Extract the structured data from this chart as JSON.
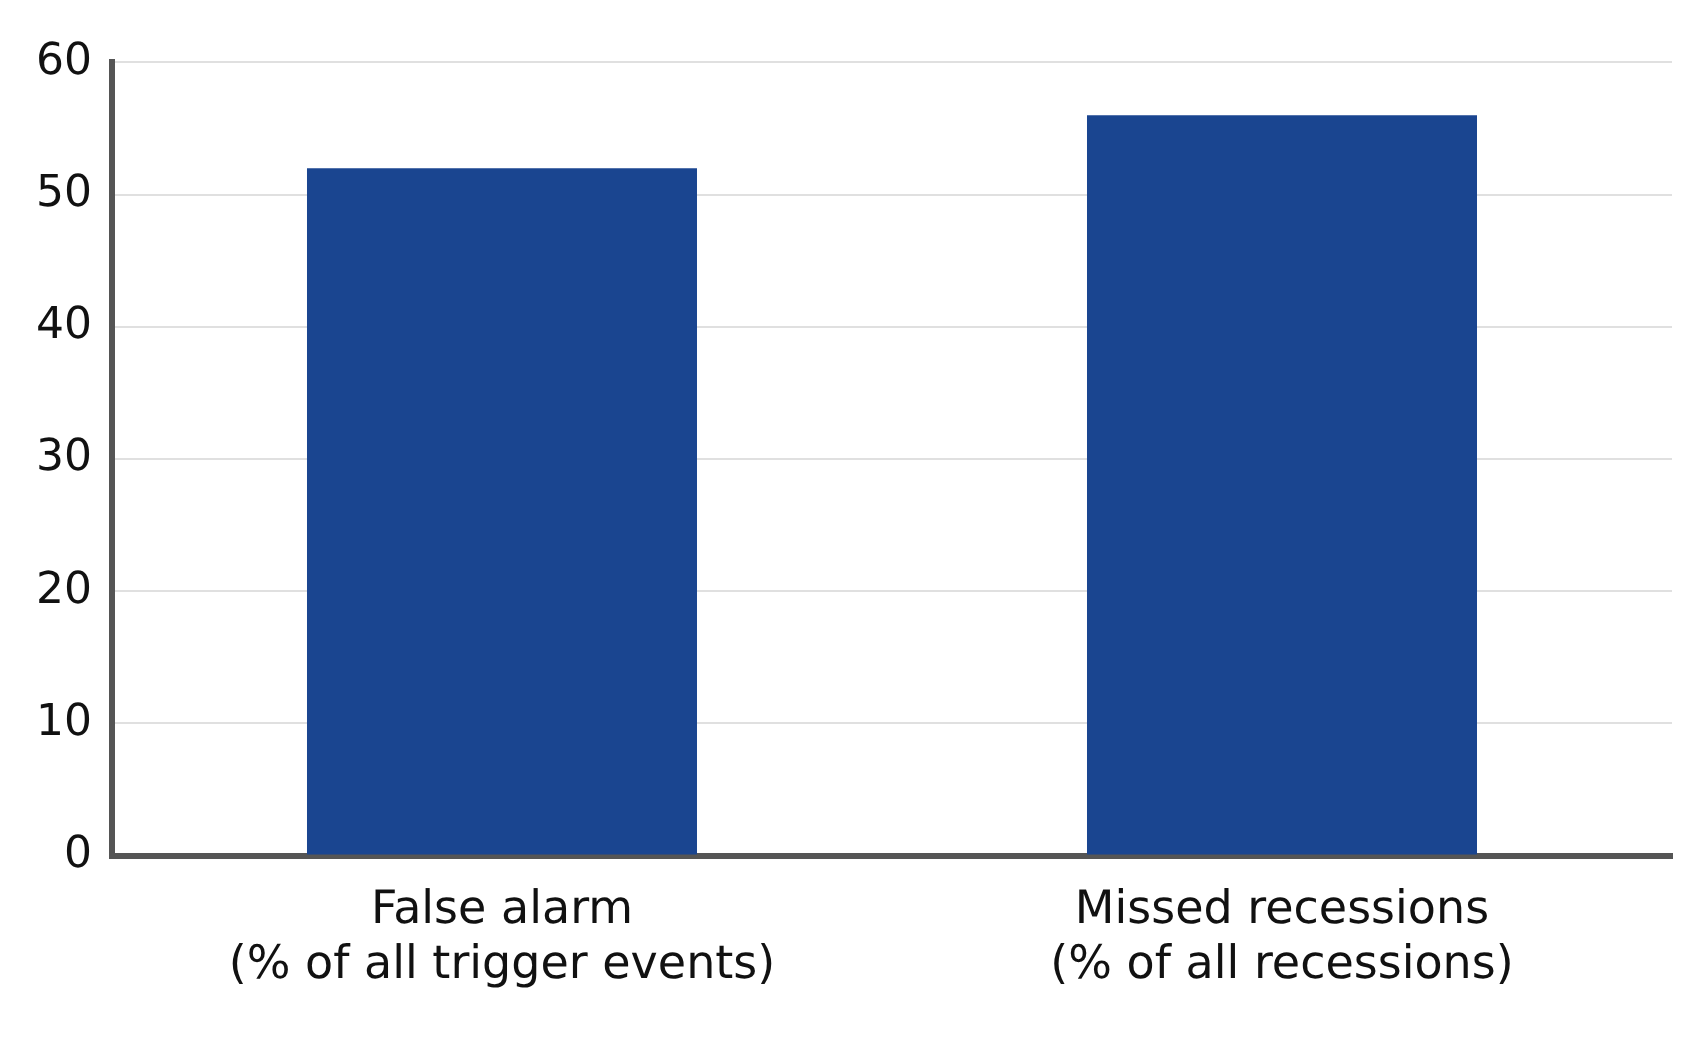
{
  "chart_data": {
    "type": "bar",
    "categories": [
      "False alarm\n(% of all trigger events)",
      "Missed recessions\n(% of all recessions)"
    ],
    "values": [
      52,
      56
    ],
    "color": "#1a4590",
    "ylim": [
      0,
      60
    ],
    "yticks": [
      0,
      10,
      20,
      30,
      40,
      50,
      60
    ],
    "grid": "y",
    "legend": false
  }
}
